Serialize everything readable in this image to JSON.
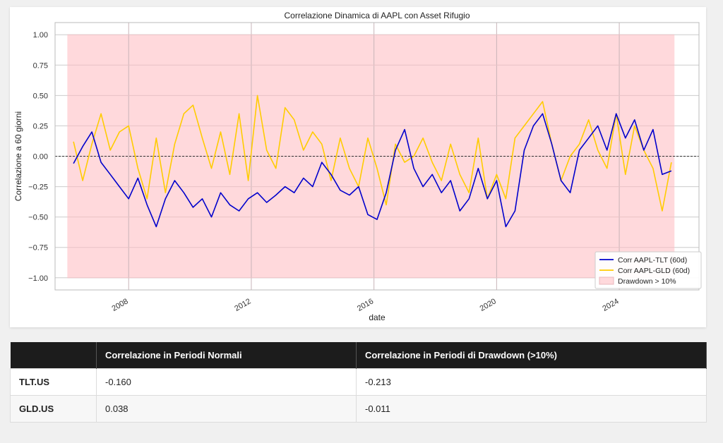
{
  "chart_data": {
    "type": "line",
    "title": "Correlazione Dinamica di AAPL con Asset Rifugio",
    "xlabel": "date",
    "ylabel": "Correlazione a 60 giorni",
    "xlim": [
      2005.6,
      2026.6
    ],
    "ylim": [
      -1.1,
      1.1
    ],
    "x_ticks": [
      2008,
      2012,
      2016,
      2020,
      2024
    ],
    "y_ticks": [
      1.0,
      0.75,
      0.5,
      0.25,
      0.0,
      -0.25,
      -0.5,
      -0.75,
      -1.0
    ],
    "y_tick_labels": [
      "1.00",
      "0.75",
      "0.50",
      "0.25",
      "0.00",
      "−0.25",
      "−0.50",
      "−0.75",
      "−1.00"
    ],
    "grid": true,
    "zero_line": 0.0,
    "shaded_region": {
      "label": "Drawdown > 10%",
      "x_start": 2006.0,
      "x_end": 2025.8,
      "y_start": -1.0,
      "y_end": 1.0,
      "color": "#ffd9dc"
    },
    "legend_position": "lower-right",
    "series": [
      {
        "name": "Corr AAPL-TLT (60d)",
        "color": "#0000cc",
        "x": [
          2006.2,
          2006.5,
          2006.8,
          2007.1,
          2007.4,
          2007.7,
          2008.0,
          2008.3,
          2008.6,
          2008.9,
          2009.2,
          2009.5,
          2009.8,
          2010.1,
          2010.4,
          2010.7,
          2011.0,
          2011.3,
          2011.6,
          2011.9,
          2012.2,
          2012.5,
          2012.8,
          2013.1,
          2013.4,
          2013.7,
          2014.0,
          2014.3,
          2014.6,
          2014.9,
          2015.2,
          2015.5,
          2015.8,
          2016.1,
          2016.4,
          2016.7,
          2017.0,
          2017.3,
          2017.6,
          2017.9,
          2018.2,
          2018.5,
          2018.8,
          2019.1,
          2019.4,
          2019.7,
          2020.0,
          2020.3,
          2020.6,
          2020.9,
          2021.2,
          2021.5,
          2021.8,
          2022.1,
          2022.4,
          2022.7,
          2023.0,
          2023.3,
          2023.6,
          2023.9,
          2024.2,
          2024.5,
          2024.8,
          2025.1,
          2025.4,
          2025.7
        ],
        "values": [
          -0.06,
          0.08,
          0.2,
          -0.05,
          -0.15,
          -0.25,
          -0.35,
          -0.18,
          -0.4,
          -0.58,
          -0.35,
          -0.2,
          -0.3,
          -0.42,
          -0.35,
          -0.5,
          -0.3,
          -0.4,
          -0.45,
          -0.35,
          -0.3,
          -0.38,
          -0.32,
          -0.25,
          -0.3,
          -0.18,
          -0.25,
          -0.05,
          -0.15,
          -0.28,
          -0.32,
          -0.25,
          -0.48,
          -0.52,
          -0.3,
          0.05,
          0.22,
          -0.1,
          -0.25,
          -0.15,
          -0.3,
          -0.2,
          -0.45,
          -0.35,
          -0.1,
          -0.35,
          -0.2,
          -0.58,
          -0.45,
          0.05,
          0.25,
          0.35,
          0.1,
          -0.2,
          -0.3,
          0.05,
          0.15,
          0.25,
          0.05,
          0.35,
          0.15,
          0.3,
          0.05,
          0.22,
          -0.15,
          -0.12
        ]
      },
      {
        "name": "Corr AAPL-GLD (60d)",
        "color": "#ffcc00",
        "x": [
          2006.2,
          2006.5,
          2006.8,
          2007.1,
          2007.4,
          2007.7,
          2008.0,
          2008.3,
          2008.6,
          2008.9,
          2009.2,
          2009.5,
          2009.8,
          2010.1,
          2010.4,
          2010.7,
          2011.0,
          2011.3,
          2011.6,
          2011.9,
          2012.2,
          2012.5,
          2012.8,
          2013.1,
          2013.4,
          2013.7,
          2014.0,
          2014.3,
          2014.6,
          2014.9,
          2015.2,
          2015.5,
          2015.8,
          2016.1,
          2016.4,
          2016.7,
          2017.0,
          2017.3,
          2017.6,
          2017.9,
          2018.2,
          2018.5,
          2018.8,
          2019.1,
          2019.4,
          2019.7,
          2020.0,
          2020.3,
          2020.6,
          2020.9,
          2021.2,
          2021.5,
          2021.8,
          2022.1,
          2022.4,
          2022.7,
          2023.0,
          2023.3,
          2023.6,
          2023.9,
          2024.2,
          2024.5,
          2024.8,
          2025.1,
          2025.4,
          2025.7
        ],
        "values": [
          0.12,
          -0.2,
          0.1,
          0.35,
          0.05,
          0.2,
          0.25,
          -0.1,
          -0.35,
          0.15,
          -0.3,
          0.1,
          0.35,
          0.42,
          0.15,
          -0.1,
          0.2,
          -0.15,
          0.35,
          -0.2,
          0.5,
          0.05,
          -0.1,
          0.4,
          0.3,
          0.05,
          0.2,
          0.1,
          -0.2,
          0.15,
          -0.1,
          -0.25,
          0.15,
          -0.1,
          -0.4,
          0.1,
          -0.05,
          0.0,
          0.15,
          -0.05,
          -0.2,
          0.1,
          -0.15,
          -0.3,
          0.15,
          -0.35,
          -0.15,
          -0.35,
          0.15,
          0.25,
          0.35,
          0.45,
          0.1,
          -0.2,
          0.0,
          0.1,
          0.3,
          0.05,
          -0.1,
          0.35,
          -0.15,
          0.25,
          0.05,
          -0.1,
          -0.45,
          -0.05
        ]
      }
    ]
  },
  "table": {
    "headers": [
      "",
      "Correlazione in Periodi Normali",
      "Correlazione in Periodi di Drawdown (>10%)"
    ],
    "rows": [
      [
        "TLT.US",
        "-0.160",
        "-0.213"
      ],
      [
        "GLD.US",
        "0.038",
        "-0.011"
      ]
    ]
  }
}
